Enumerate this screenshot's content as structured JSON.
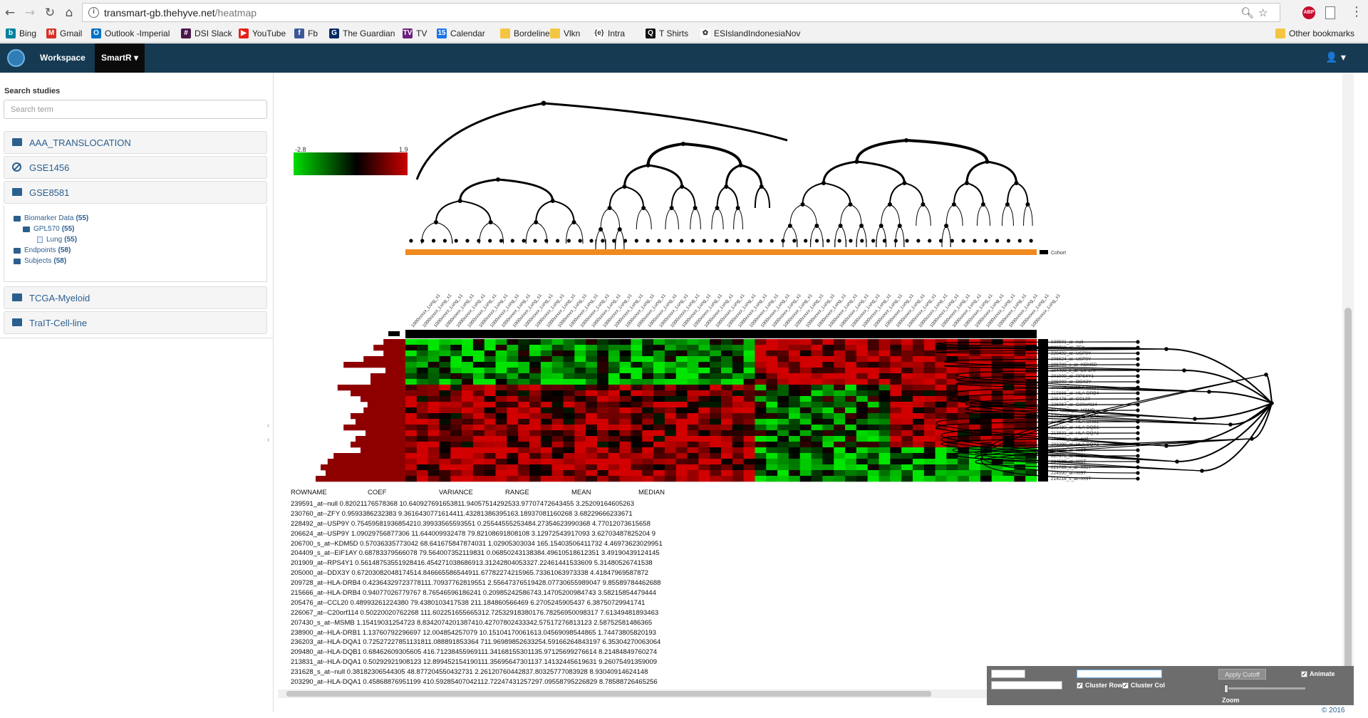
{
  "browser": {
    "url_host": "transmart-gb.thehyve.net",
    "url_path": "/heatmap",
    "bookmarks": [
      {
        "label": "Bing",
        "color": "#00809d",
        "glyph": "b"
      },
      {
        "label": "Gmail",
        "color": "#d93025",
        "glyph": "M"
      },
      {
        "label": "Outlook -Imperial",
        "color": "#0072c6",
        "glyph": "O"
      },
      {
        "label": "DSI Slack",
        "color": "#4a154b",
        "glyph": "#"
      },
      {
        "label": "YouTube",
        "color": "#e62117",
        "glyph": "▶"
      },
      {
        "label": "Fb",
        "color": "#3b5998",
        "glyph": "f"
      },
      {
        "label": "The Guardian",
        "color": "#052962",
        "glyph": "G"
      },
      {
        "label": "TV",
        "color": "#6d1f7e",
        "glyph": "TV"
      },
      {
        "label": "Calendar",
        "color": "#1a73e8",
        "glyph": "15"
      },
      {
        "label": "Bordeline",
        "color": "#f4c542",
        "glyph": ""
      },
      {
        "label": "Vlkn",
        "color": "#f4c542",
        "glyph": ""
      },
      {
        "label": "Intra",
        "color": "#ffffff",
        "glyph": "{e}"
      },
      {
        "label": "T Shirts",
        "color": "#111111",
        "glyph": "Q"
      },
      {
        "label": "ESIslandIndonesiaNov",
        "color": "#ffffff",
        "glyph": "✿"
      }
    ],
    "other_bookmarks": "Other bookmarks"
  },
  "appnav": {
    "workspace": "Workspace",
    "smartr": "SmartR ▾",
    "user_icon": "👤 ▾"
  },
  "sidebar": {
    "search_label": "Search studies",
    "search_placeholder": "Search term",
    "studies": [
      {
        "label": "AAA_TRANSLOCATION",
        "icon": "folder-icon"
      },
      {
        "label": "GSE1456",
        "icon": "ban-icon"
      },
      {
        "label": "GSE8581",
        "icon": "folder-open-icon"
      },
      {
        "label": "TCGA-Myeloid",
        "icon": "folder-icon"
      },
      {
        "label": "TraIT-Cell-line",
        "icon": "folder-icon"
      }
    ],
    "tree": [
      {
        "label": "Biomarker Data",
        "count": "(55)"
      },
      {
        "label": "GPL570",
        "count": "(55)"
      },
      {
        "label": "Lung",
        "count": "(55)"
      },
      {
        "label": "Endpoints",
        "count": "(58)"
      },
      {
        "label": "Subjects",
        "count": "(58)"
      }
    ]
  },
  "heatmap": {
    "legend_min": "-2.8",
    "legend_max": "1.9",
    "cohort_label": "Cohort",
    "column_labels": [
      "1000xxxxx_Lung_s1"
    ],
    "row_labels": [
      "239591_at--null",
      "230760_at--ZFY",
      "228492_at--USP9Y",
      "206624_at--USP9Y",
      "206700_s_at--KDM5D",
      "204409_s_at--EIF1AY",
      "201909_at--RPS4Y1",
      "205000_at--DDX3Y",
      "209728_at--HLA-DRB4",
      "215666_at--HLA-DRB4",
      "205476_at--CCL20",
      "226067_at--C20orf114",
      "207430_s_at--MSMB",
      "236203_at--HLA-DQA1",
      "238900_at--HLA-DRB1",
      "209480_at--HLA-DQB1",
      "213831_at--HLA-DQA1",
      "231628_s_at--null",
      "203290_at--HLA-DQA1",
      "224589_at--XIST",
      "227671_at--XIST",
      "224588_at--XIST",
      "221728_x_at--XIST",
      "224590_at--XIST",
      "214218_s_at--XIST"
    ],
    "bar_values": [
      0.22,
      0.32,
      0.22,
      0.42,
      0.62,
      0.2,
      0.35,
      0.35,
      0.68,
      0.55,
      0.45,
      0.38,
      0.42,
      0.55,
      0.5,
      0.62,
      0.4,
      0.5,
      0.55,
      0.45,
      0.72,
      0.78,
      0.85,
      0.8,
      0.9
    ],
    "colors": {
      "low": "#00dd00",
      "mid": "#000000",
      "high": "#cc0000",
      "cohort": "#f08a1e",
      "bar": "#8e0000"
    }
  },
  "stats_table": {
    "headers": [
      "ROWNAME",
      "COEF",
      "VARIANCE",
      "RANGE",
      "MEAN",
      "MEDIAN"
    ],
    "rows": [
      "239591_at--null        0.82021176578368  10.640927691653811.94057514292533.97707472643455 3.25209164605263",
      "230760_at--ZFY         0.9593386232383   9.3616430771614411.43281386395163.18937081160268 3.68229666233671",
      "228492_at--USP9Y       0.75459581936854210.39933565593551 0.25544555253484.27354623990368 4.77012073615658",
      "206624_at--USP9Y       1.09029756877306  11.644009932478 79.82108691808108 3.12972543917093 3.62703487825204 9",
      "206700_s_at--KDM5D     0.57036335773042 68.641675847874031 1.02905303034 165.15403506411732 4.46973623029951",
      "204409_s_at--EIF1AY    0.68783379566078 79.564007352119831 0.06850243138384.49610518612351 3.49190439124145",
      "201909_at--RPS4Y1      0.56148753551928416.454271038686913.31242804053327.22461441533609 5.31480526741538",
      "205000_at--DDX3Y       0.67203082048174514.846665586544911.67782274215965.73361063973338 4.41847969587872",
      "209728_at--HLA-DRB4    0.42364329723778111.70937762819551 2.55647376519428.07730655989047 9.85589784462688",
      "215666_at--HLA-DRB4    0.94077026779767 8.76546596186241 0.20985242586743.14705200984743 3.58215854479444",
      "205476_at--CCL20       0.48993261224380 79.4380103417538 211.184860566469 6.2705245905437 6.38750729941741",
      "226067_at--C20orf114   0.50220020762268 111.602251655665312.72532918380176.78256950098317 7.61349481893463",
      "207430_s_at--MSMB      1.15419031254723 8.8342074201387410.42707802433342.57517276813123 2.58752581486365",
      "238900_at--HLA-DRB1    1.13760792296697 12.004854257079 10.15104170061613.04569098544865 1.74473805820193",
      "236203_at--HLA-DQA1    0.72527227851131811.088891853364 711.96989852633254.59166264843197 6.35304270063064",
      "209480_at--HLA-DQB1    0.68462609305605 416.71238455969111.34168155301135.97125699276614 8.21484849760274",
      "213831_at--HLA-DQA1    0.50292921908123 12.899452154190111.35695647301137.14132445619631 9.26075491359009",
      "231628_s_at--null      0.38182306544305 48.877204550432731 2.26120760442837.80325777083928 8.93040914624148",
      "203290_at--HLA-DQA1    0.45868876951199 410.59285407042112.72247431257297.09558795226829 8.78588726465256"
    ]
  },
  "controls": {
    "cluster_row": "Cluster Row",
    "cluster_col": "Cluster Col",
    "apply_cutoff": "Apply Cutoff",
    "animate": "Animate",
    "zoom": "Zoom"
  },
  "footer": "© 2016"
}
